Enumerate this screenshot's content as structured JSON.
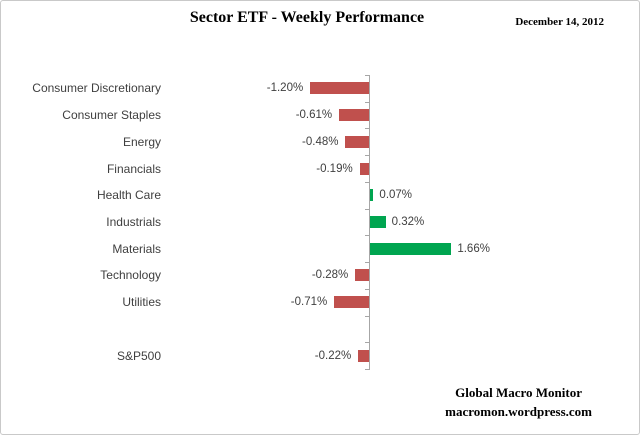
{
  "header": {
    "title": "Sector ETF - Weekly Performance",
    "date": "December 14, 2012"
  },
  "footer": {
    "line1": "Global Macro Monitor",
    "line2": "macromon.wordpress.com"
  },
  "colors": {
    "positive": "#00a550",
    "negative": "#c0504d",
    "axis": "#a6a6a6",
    "label_text": "#3f3f3f"
  },
  "chart_data": {
    "type": "bar",
    "orientation": "horizontal",
    "title": "Sector ETF - Weekly Performance",
    "subtitle": "December 14, 2012",
    "xlabel": "",
    "ylabel": "",
    "categories": [
      "Consumer Discretionary",
      "Consumer Staples",
      "Energy",
      "Financials",
      "Health Care",
      "Industrials",
      "Materials",
      "Technology",
      "Utilities",
      "",
      "S&P500"
    ],
    "values": [
      -1.2,
      -0.61,
      -0.48,
      -0.19,
      0.07,
      0.32,
      1.66,
      -0.28,
      -0.71,
      null,
      -0.22
    ],
    "labels": [
      "-1.20%",
      "-0.61%",
      "-0.48%",
      "-0.19%",
      "0.07%",
      "0.32%",
      "1.66%",
      "-0.28%",
      "-0.71%",
      "",
      "-0.22%"
    ],
    "value_axis_range": [
      -1.4,
      2.0
    ],
    "grid": false,
    "legend": false,
    "data_label_position": "outside-end",
    "positive_color": "#00a550",
    "negative_color": "#c0504d"
  }
}
